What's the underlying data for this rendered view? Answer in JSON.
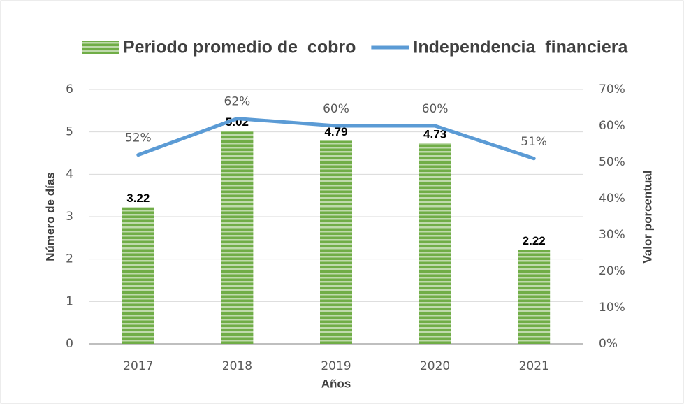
{
  "chart_data": {
    "type": "bar",
    "categories": [
      "2017",
      "2018",
      "2019",
      "2020",
      "2021"
    ],
    "series": [
      {
        "name": "Periodo promedio de  cobro",
        "color": "#70ad47",
        "values": [
          3.22,
          5.02,
          4.79,
          4.73,
          2.22
        ]
      },
      {
        "name": "Independencia  financiera",
        "color": "#5b9bd5",
        "type": "line",
        "axis": "y2",
        "values": [
          52,
          62,
          60,
          60,
          51
        ],
        "value_labels": [
          "52%",
          "62%",
          "60%",
          "60%",
          "51%"
        ]
      }
    ],
    "ylim": [
      0,
      6
    ],
    "yticks": [
      0,
      1,
      2,
      3,
      4,
      5,
      6
    ],
    "y2lim": [
      0,
      70
    ],
    "y2ticks": [
      {
        "value": 0,
        "label": "0%"
      },
      {
        "value": 10,
        "label": "10%"
      },
      {
        "value": 20,
        "label": "20%"
      },
      {
        "value": 30,
        "label": "30%"
      },
      {
        "value": 40,
        "label": "40%"
      },
      {
        "value": 50,
        "label": "50%"
      },
      {
        "value": 60,
        "label": "60%"
      },
      {
        "value": 70,
        "label": "70%"
      }
    ],
    "y_label": "Número de días",
    "y2_label": "Valor porcentual",
    "x_label": "Años",
    "grid": true,
    "legend": "top"
  }
}
